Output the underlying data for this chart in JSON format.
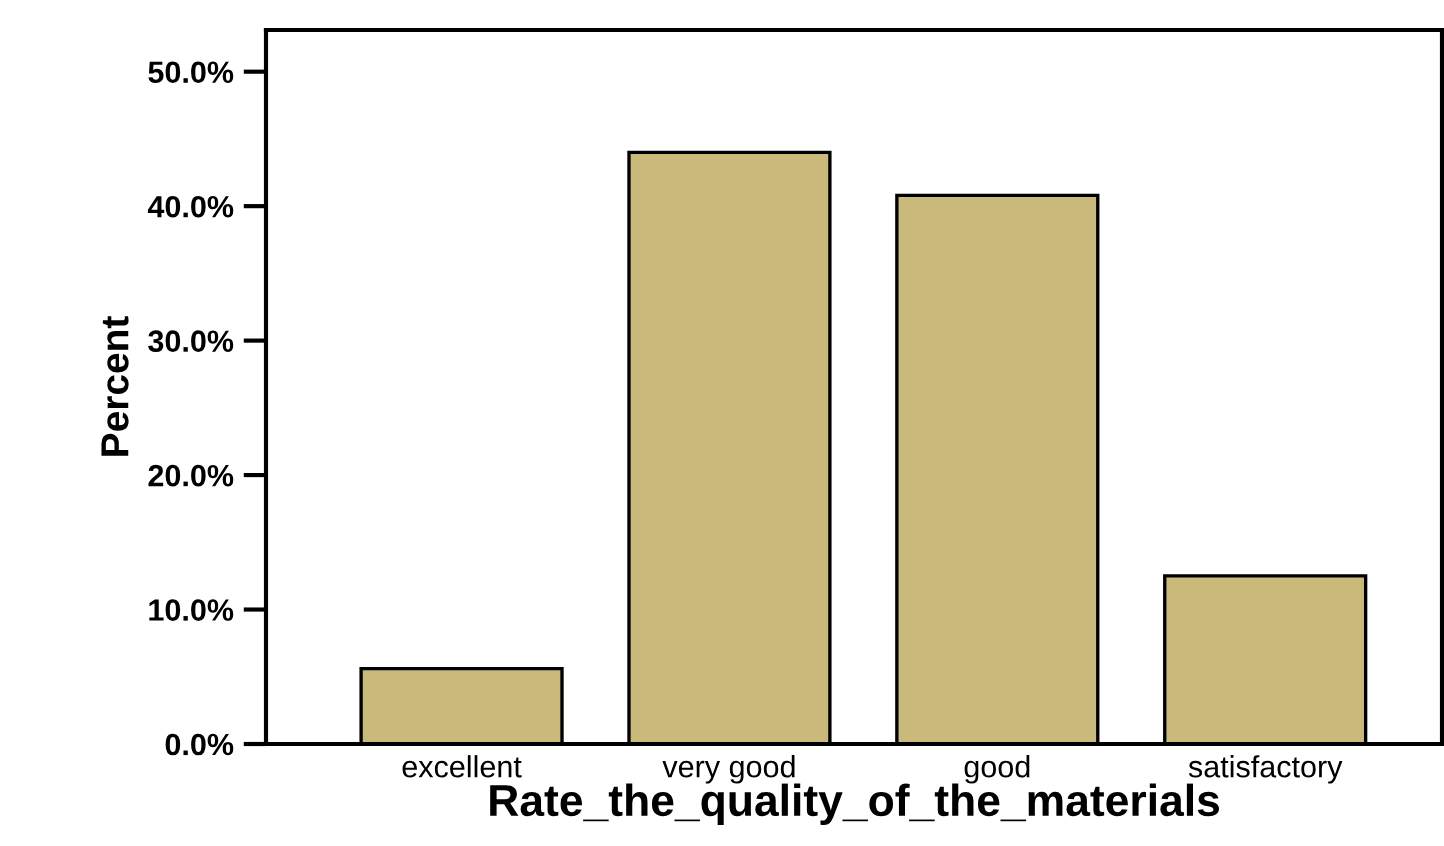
{
  "chart_data": {
    "type": "bar",
    "xlabel": "Rate_the_quality_of_the_materials",
    "ylabel": "Percent",
    "categories": [
      "excellent",
      "very good",
      "good",
      "satisfactory"
    ],
    "values": [
      5.6,
      44.0,
      40.8,
      12.5
    ],
    "color": "#c9b97a",
    "ylim": [
      0,
      53.1
    ],
    "yticks": [
      {
        "value": 0,
        "label": "0.0%"
      },
      {
        "value": 10,
        "label": "10.0%"
      },
      {
        "value": 20,
        "label": "20.0%"
      },
      {
        "value": 30,
        "label": "30.0%"
      },
      {
        "value": 40,
        "label": "40.0%"
      },
      {
        "value": 50,
        "label": "50.0%"
      }
    ],
    "grid": false,
    "legend": false
  }
}
